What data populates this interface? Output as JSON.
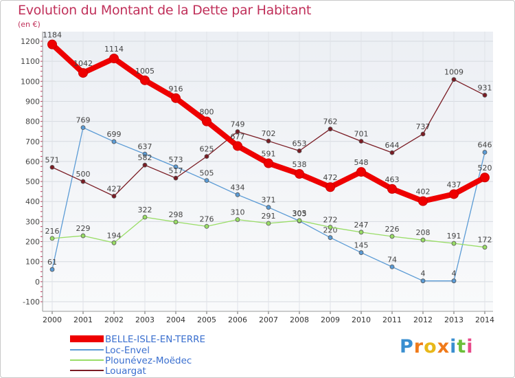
{
  "chart_data": {
    "type": "line",
    "title": "Evolution du Montant de la Dette par Habitant",
    "subtitle": "(en €)",
    "xlabel": "",
    "ylabel": "",
    "x": [
      "2000",
      "2001",
      "2002",
      "2003",
      "2004",
      "2005",
      "2006",
      "2007",
      "2008",
      "2009",
      "2010",
      "2011",
      "2012",
      "2013",
      "2014"
    ],
    "ylim": [
      -100,
      1200
    ],
    "yticks": [
      "-100",
      "0",
      "100",
      "200",
      "300",
      "400",
      "500",
      "600",
      "700",
      "800",
      "900",
      "1000",
      "1100",
      "1200"
    ],
    "grid": true,
    "legend_position": "bottom-left",
    "series": [
      {
        "name": "BELLE-ISLE-EN-TERRE",
        "color": "#ee0000",
        "emphasis": true,
        "values": [
          1184,
          1042,
          1114,
          1005,
          916,
          800,
          677,
          591,
          538,
          472,
          548,
          463,
          402,
          437,
          520
        ],
        "labels": [
          "1184",
          "1042",
          "1114",
          "1005",
          "916",
          "800",
          "677",
          "591",
          "538",
          "472",
          "548",
          "463",
          "402",
          "437",
          "520"
        ]
      },
      {
        "name": "Loc-Envel",
        "color": "#5b9bd5",
        "values": [
          61,
          769,
          699,
          637,
          573,
          505,
          434,
          371,
          303,
          220,
          145,
          74,
          4,
          4,
          646
        ],
        "labels": [
          "61",
          "769",
          "699",
          "637",
          "573",
          "505",
          "434",
          "371",
          "303",
          "220",
          "145",
          "74",
          "4",
          "4",
          "646"
        ]
      },
      {
        "name": "Plounévez-Moëdec",
        "color": "#99dd66",
        "values": [
          216,
          229,
          194,
          322,
          298,
          276,
          310,
          291,
          305,
          272,
          247,
          226,
          208,
          191,
          172
        ],
        "labels": [
          "216",
          "229",
          "194",
          "322",
          "298",
          "276",
          "310",
          "291",
          "305",
          "272",
          "247",
          "226",
          "208",
          "191",
          "172"
        ]
      },
      {
        "name": "Louargat",
        "color": "#7a1c24",
        "values": [
          571,
          500,
          427,
          582,
          517,
          625,
          749,
          702,
          653,
          762,
          701,
          644,
          737,
          1009,
          931
        ],
        "labels": [
          "571",
          "500",
          "427",
          "582",
          "517",
          "625",
          "749",
          "702",
          "653",
          "762",
          "701",
          "644",
          "737",
          "1009",
          "931"
        ]
      }
    ]
  },
  "logo": {
    "text": "Proxiti",
    "letter_colors": [
      "#3a8fd0",
      "#f07a1a",
      "#e8b81a",
      "#f07a1a",
      "#3a8fd0",
      "#6cbf3a",
      "#e84a8a"
    ]
  }
}
